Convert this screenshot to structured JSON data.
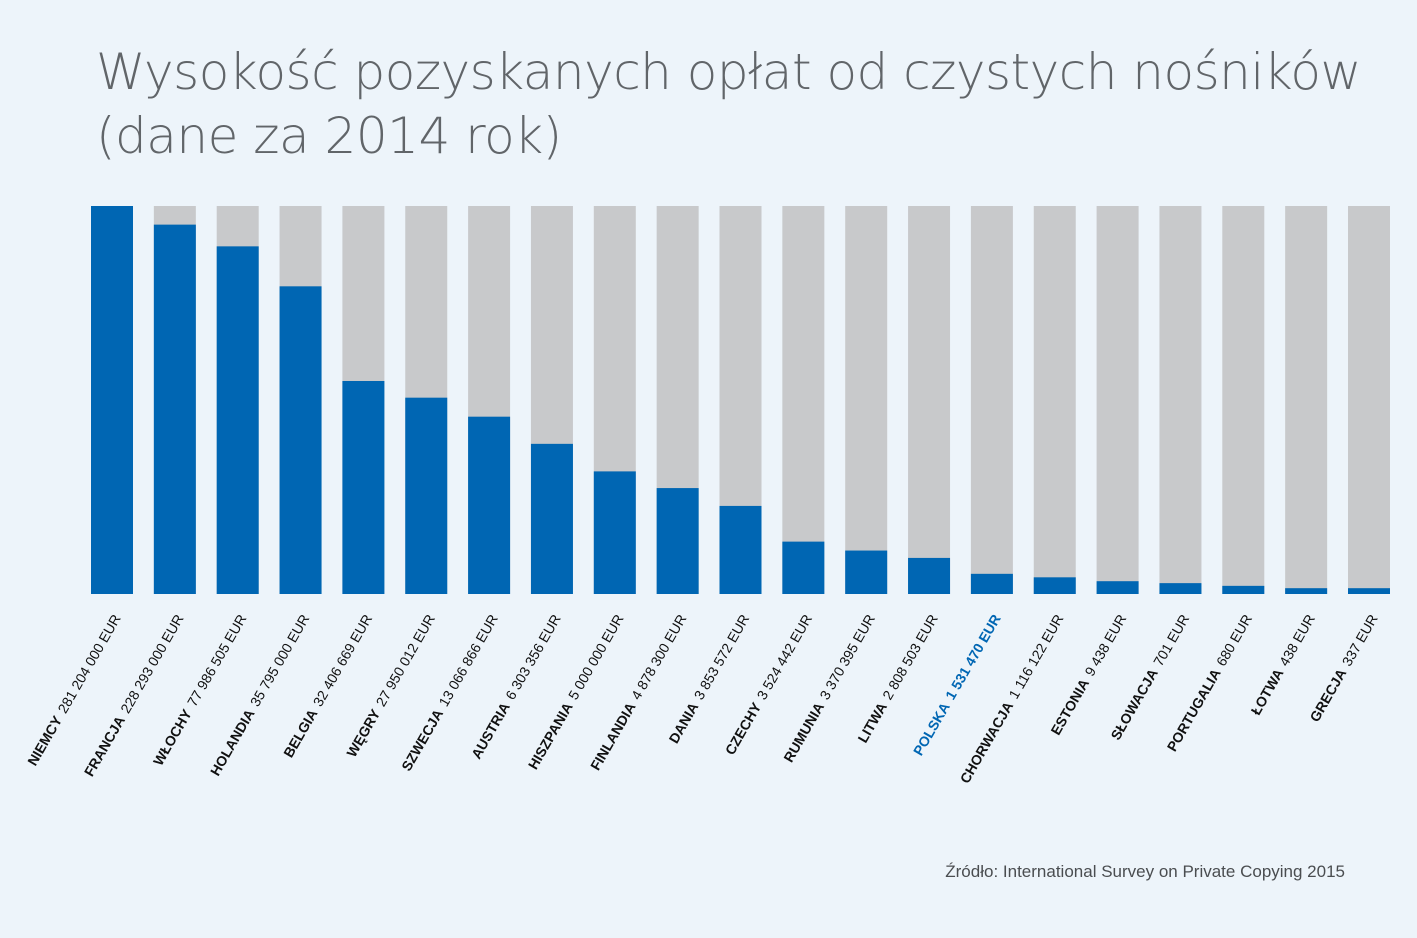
{
  "title": {
    "line1": "Wysokość pozyskanych opłat od czystych nośników",
    "line2": "(dane za 2014 rok)"
  },
  "source": "Źródło: International Survey on Private Copying 2015",
  "colors": {
    "background": "#edf4fa",
    "bar_fill": "#0066b3",
    "bar_track": "#c8c9cb",
    "label": "#111111",
    "highlight_label": "#0066b3",
    "title": "#616569"
  },
  "chart_data": {
    "type": "bar",
    "title": "Wysokość pozyskanych opłat od czystych nośników (dane za 2014 rok)",
    "ylim": [
      0,
      100
    ],
    "grid": false,
    "legend": "none",
    "unit": "EUR",
    "categories": [
      "NIEMCY",
      "FRANCJA",
      "WŁOCHY",
      "HOLANDIA",
      "BELGIA",
      "WĘGRY",
      "SZWECJA",
      "AUSTRIA",
      "HISZPANIA",
      "FINLANDIA",
      "DANIA",
      "CZECHY",
      "RUMUNIA",
      "LITWA",
      "POLSKA",
      "CHORWACJA",
      "ESTONIA",
      "SŁOWACJA",
      "PORTUGALIA",
      "ŁOTWA",
      "GRECJA"
    ],
    "value_labels": [
      "281 204 000 EUR",
      "228 293 000 EUR",
      "77 986 505 EUR",
      "35 795 000 EUR",
      "32 406 669 EUR",
      "27 950 012 EUR",
      "13 066 866 EUR",
      "6 303 356 EUR",
      "5 000 000 EUR",
      "4 878 300 EUR",
      "3 853 572 EUR",
      "3 524 442 EUR",
      "3 370 395 EUR",
      "2 808 503 EUR",
      "1 531 470 EUR",
      "1 116 122 EUR",
      "9 438 EUR",
      "701 EUR",
      "680 EUR",
      "438 EUR",
      "337 EUR"
    ],
    "values": [
      281204000,
      228293000,
      77986505,
      35795000,
      32406669,
      27950012,
      13066866,
      6303356,
      5000000,
      4878300,
      3853572,
      3524442,
      3370395,
      2808503,
      1531470,
      1116122,
      9438,
      701,
      680,
      438,
      337
    ],
    "fill_percent": [
      100,
      95.2,
      89.6,
      79.3,
      54.9,
      50.6,
      45.7,
      38.7,
      31.6,
      27.3,
      22.7,
      13.5,
      11.2,
      9.3,
      5.2,
      4.3,
      3.3,
      2.8,
      2.1,
      1.5,
      1.5
    ],
    "highlight": "POLSKA"
  }
}
